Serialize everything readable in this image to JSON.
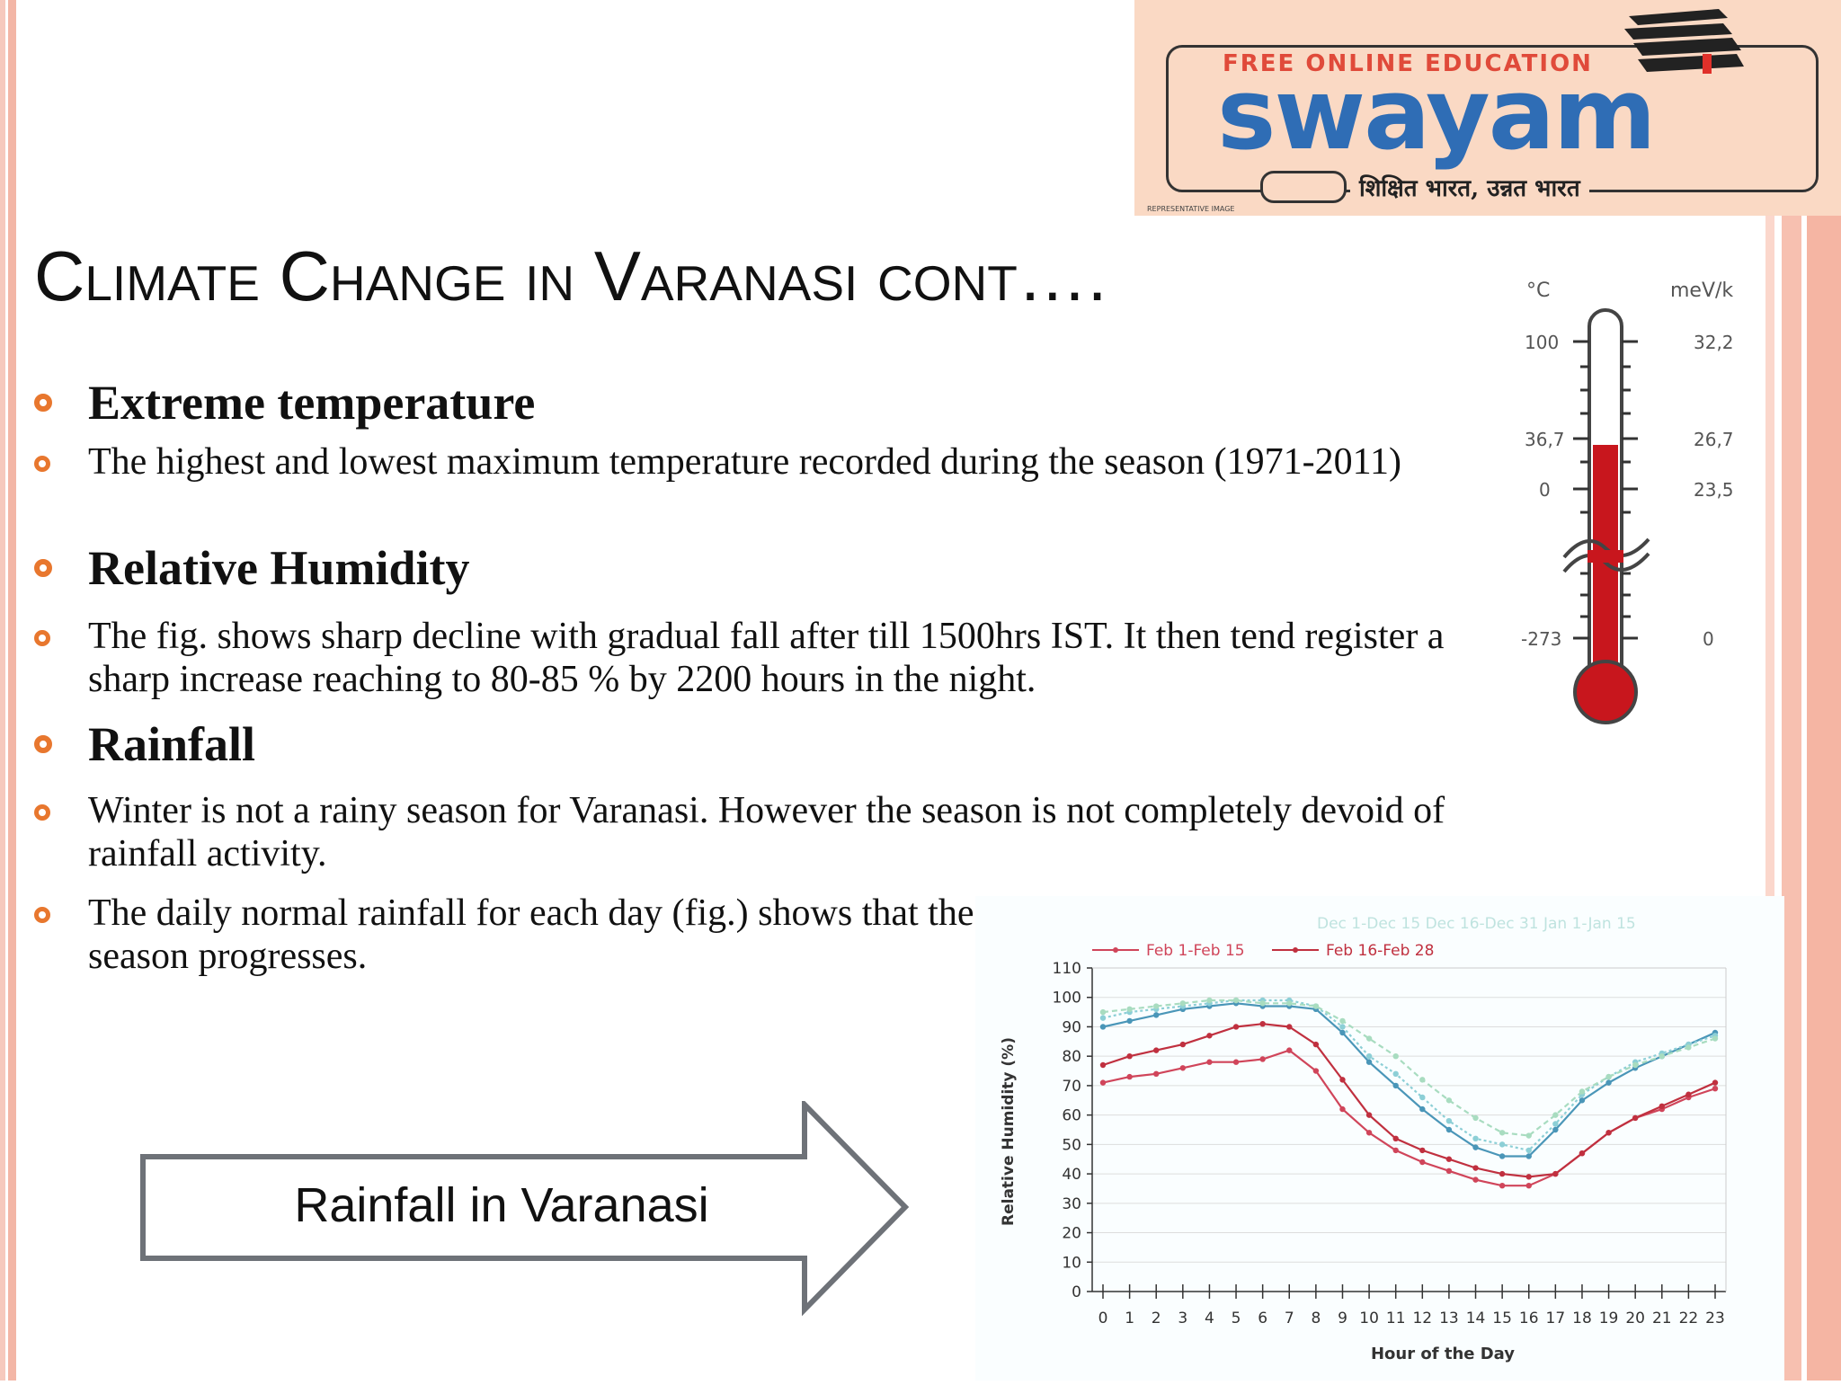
{
  "logo": {
    "top_text": "FREE ONLINE EDUCATION",
    "main_text": "swayam",
    "tagline": "शिक्षित भारत, उन्नत भारत",
    "small_text": "REPRESENTATIVE IMAGE"
  },
  "slide": {
    "title": "Climate Change in Varanasi  cont….",
    "bullets": [
      {
        "type": "heading",
        "text": "Extreme temperature"
      },
      {
        "type": "text",
        "text": "The highest and lowest maximum temperature recorded during the season (1971-2011)"
      },
      {
        "type": "heading",
        "text": "Relative Humidity"
      },
      {
        "type": "text",
        "text": "The fig. shows sharp decline with gradual fall after till 1500hrs IST. It then tend register a sharp increase reaching to 80-85 % by 2200 hours in the night."
      },
      {
        "type": "heading",
        "text": "Rainfall"
      },
      {
        "type": "text",
        "text": "Winter is not a rainy season for Varanasi. However the season is not completely devoid of rainfall activity."
      },
      {
        "type": "text",
        "text": "The daily normal rainfall for each day (fig.) shows that the rainfall activity increases as the season progresses."
      }
    ],
    "arrow_label": "Rainfall in Varanasi"
  },
  "thermometer": {
    "left_unit": "°C",
    "right_unit": "meV/k",
    "left_labels": [
      "100",
      "36,7",
      "0",
      "-273"
    ],
    "right_labels": [
      "32,2",
      "26,7",
      "23,5",
      "0"
    ],
    "fill_color": "#c8161d"
  },
  "chart_data": {
    "type": "line",
    "xlabel": "Hour of the Day",
    "ylabel": "Relative Humidity (%)",
    "ylim": [
      0,
      110
    ],
    "yticks": [
      0,
      10,
      20,
      30,
      40,
      50,
      60,
      70,
      80,
      90,
      100,
      110
    ],
    "x": [
      0,
      1,
      2,
      3,
      4,
      5,
      6,
      7,
      8,
      9,
      10,
      11,
      12,
      13,
      14,
      15,
      16,
      17,
      18,
      19,
      20,
      21,
      22,
      23
    ],
    "legend_placement": "top",
    "legend_cropped": [
      "Dec 1-Dec 15",
      "Dec 16-Dec 31",
      "Jan 1-Jan 15"
    ],
    "series": [
      {
        "name": "Feb 1-Feb 15",
        "color": "#d0455a",
        "values": [
          71,
          73,
          74,
          76,
          78,
          78,
          79,
          82,
          75,
          62,
          54,
          48,
          44,
          41,
          38,
          36,
          36,
          40,
          47,
          54,
          59,
          62,
          66,
          69
        ]
      },
      {
        "name": "Feb 16-Feb 28",
        "color": "#c0303f",
        "values": [
          77,
          80,
          82,
          84,
          87,
          90,
          91,
          90,
          84,
          72,
          60,
          52,
          48,
          45,
          42,
          40,
          39,
          40,
          47,
          54,
          59,
          63,
          67,
          71
        ]
      },
      {
        "name": "",
        "color": "#4a96b8",
        "values": [
          90,
          92,
          94,
          96,
          97,
          98,
          97,
          97,
          96,
          88,
          78,
          70,
          62,
          55,
          49,
          46,
          46,
          55,
          65,
          71,
          76,
          80,
          84,
          88
        ]
      },
      {
        "name": "",
        "color": "#8ccfd6",
        "values": [
          93,
          95,
          96,
          97,
          98,
          99,
          99,
          99,
          97,
          90,
          80,
          74,
          66,
          58,
          52,
          50,
          48,
          57,
          67,
          73,
          78,
          81,
          84,
          87
        ]
      },
      {
        "name": "",
        "color": "#a8dcc0",
        "values": [
          95,
          96,
          97,
          98,
          99,
          99,
          98,
          98,
          97,
          92,
          86,
          80,
          72,
          65,
          59,
          54,
          53,
          60,
          68,
          73,
          77,
          80,
          83,
          86
        ]
      }
    ]
  }
}
